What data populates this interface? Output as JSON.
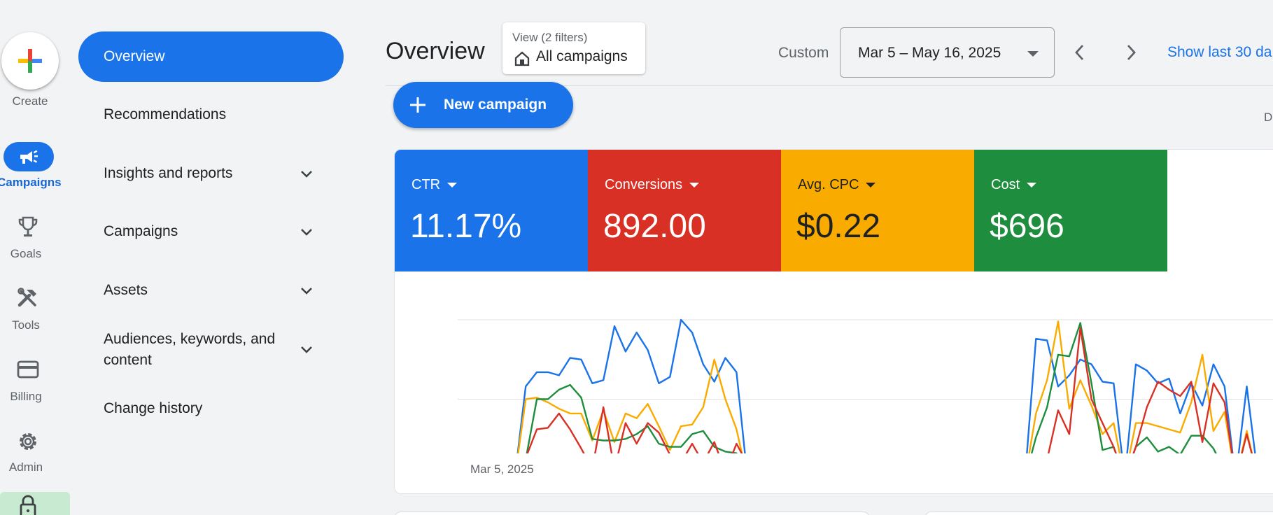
{
  "rail": {
    "create_label": "Create",
    "items": [
      {
        "label": "Campaigns",
        "icon": "megaphone-icon",
        "active": true
      },
      {
        "label": "Goals",
        "icon": "trophy-icon"
      },
      {
        "label": "Tools",
        "icon": "tools-icon"
      },
      {
        "label": "Billing",
        "icon": "credit-card-icon"
      },
      {
        "label": "Admin",
        "icon": "gear-icon"
      }
    ]
  },
  "subnav": {
    "active": "Overview",
    "items": [
      {
        "label": "Recommendations"
      },
      {
        "label": "Insights and reports",
        "expandable": true
      },
      {
        "label": "Campaigns",
        "expandable": true
      },
      {
        "label": "Assets",
        "expandable": true
      },
      {
        "label": "Audiences, keywords, and content",
        "expandable": true
      },
      {
        "label": "Change history"
      }
    ]
  },
  "header": {
    "title": "Overview",
    "filter_sub": "View (2 filters)",
    "filter_main": "All campaigns",
    "custom_label": "Custom",
    "date_range": "Mar 5 – May 16, 2025",
    "show_last": "Show last 30 da"
  },
  "new_campaign_label": "New campaign",
  "cut_label": "D",
  "metrics": [
    {
      "label": "CTR",
      "value": "11.17%",
      "color": "#1a73e8"
    },
    {
      "label": "Conversions",
      "value": "892.00",
      "color": "#d93025"
    },
    {
      "label": "Avg. CPC",
      "value": "$0.22",
      "color": "#f9ab00"
    },
    {
      "label": "Cost",
      "value": "$696",
      "color": "#1e8e3e"
    }
  ],
  "chart_data": {
    "type": "line",
    "x_first_label": "Mar 5, 2025",
    "y_normalized": [
      0,
      1
    ],
    "grid": true,
    "series": [
      {
        "name": "CTR",
        "color": "#1a73e8",
        "values": [
          0,
          0,
          0,
          0,
          0,
          0.58,
          0.67,
          0.67,
          0.65,
          0.76,
          0.75,
          0.6,
          0.62,
          0.96,
          0.8,
          0.92,
          0.81,
          0.6,
          0.64,
          1,
          0.92,
          0.72,
          0.61,
          0.76,
          0.67,
          0,
          0,
          0,
          0,
          0,
          0,
          0,
          0,
          0,
          0,
          0,
          0,
          0,
          0,
          0,
          0,
          0,
          0,
          0,
          0,
          0,
          0,
          0,
          0,
          0,
          0,
          0.88,
          0.87,
          0.58,
          0.65,
          0.75,
          0.72,
          0.61,
          0.6,
          0,
          0.72,
          0.68,
          0.6,
          0.63,
          0.41,
          0.6,
          0.46,
          0.72,
          0.58,
          0,
          0.58,
          0.02,
          0,
          0
        ]
      },
      {
        "name": "Conversions",
        "color": "#d93025",
        "values": [
          0,
          0,
          0,
          0,
          0,
          0.13,
          0.31,
          0.32,
          0.41,
          0.31,
          0.19,
          0.06,
          0.45,
          0.06,
          0.35,
          0.22,
          0.35,
          0.29,
          0.15,
          0.1,
          0.22,
          0.1,
          0.23,
          0.04,
          0.22,
          0.09,
          0,
          0,
          0,
          0,
          0,
          0,
          0,
          0,
          0,
          0,
          0,
          0,
          0,
          0,
          0,
          0,
          0,
          0,
          0,
          0,
          0,
          0,
          0,
          0,
          0,
          0.07,
          0.12,
          0.43,
          0.28,
          0.95,
          0.5,
          0.35,
          0.2,
          0,
          0.2,
          0.45,
          0.61,
          0.56,
          0.52,
          0.61,
          0.23,
          0.6,
          0.48,
          0,
          0.28,
          0.01,
          0,
          0
        ]
      },
      {
        "name": "Avg. CPC",
        "color": "#f9ab00",
        "values": [
          0,
          0,
          0,
          0,
          0,
          0.5,
          0.51,
          0.48,
          0.44,
          0.41,
          0.41,
          0.24,
          0.43,
          0.23,
          0.41,
          0.38,
          0.47,
          0.33,
          0.18,
          0.33,
          0.34,
          0.45,
          0.75,
          0.5,
          0.31,
          0,
          0,
          0,
          0,
          0,
          0,
          0,
          0,
          0,
          0,
          0,
          0,
          0,
          0,
          0,
          0,
          0,
          0,
          0,
          0,
          0,
          0,
          0,
          0,
          0,
          0,
          0.41,
          0.62,
          0.99,
          0.44,
          0.62,
          0.46,
          0.28,
          0.35,
          0,
          0.35,
          0.35,
          0.33,
          0.31,
          0.29,
          0.48,
          0.78,
          0.3,
          0.42,
          0,
          0.3,
          0,
          0,
          0
        ]
      },
      {
        "name": "Cost",
        "color": "#1e8e3e",
        "values": [
          0,
          0,
          0,
          0,
          0,
          0.12,
          0.5,
          0.5,
          0.56,
          0.59,
          0.51,
          0.25,
          0.24,
          0.24,
          0.25,
          0.28,
          0.33,
          0.22,
          0.2,
          0.2,
          0.28,
          0.3,
          0.2,
          0.17,
          0.16,
          0,
          0,
          0,
          0,
          0,
          0,
          0,
          0,
          0,
          0,
          0,
          0,
          0,
          0,
          0,
          0,
          0,
          0,
          0,
          0,
          0,
          0,
          0,
          0,
          0,
          0,
          0.26,
          0.45,
          0.78,
          0.77,
          0.98,
          0.6,
          0.18,
          0.2,
          0,
          0.2,
          0.26,
          0.17,
          0.2,
          0.15,
          0.27,
          0.27,
          0.19,
          0.05,
          0,
          0.06,
          0,
          0,
          0
        ]
      }
    ]
  }
}
